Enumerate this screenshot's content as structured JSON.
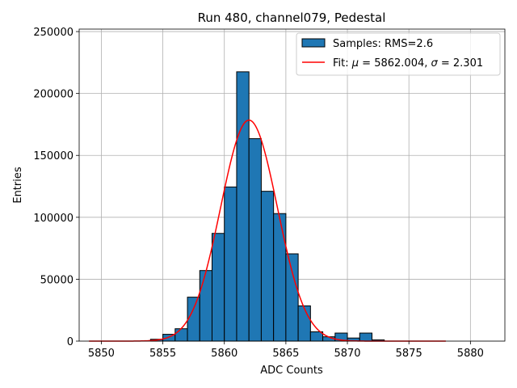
{
  "chart_data": {
    "type": "bar",
    "title": "Run 480, channel079, Pedestal",
    "xlabel": "ADC Counts",
    "ylabel": "Entries",
    "xlim": [
      5848.2,
      5882.8
    ],
    "ylim": [
      0,
      252000
    ],
    "xticks": [
      5850,
      5855,
      5860,
      5865,
      5870,
      5875,
      5880
    ],
    "yticks": [
      0,
      50000,
      100000,
      150000,
      200000,
      250000
    ],
    "grid": true,
    "legend_position": "top-right",
    "legend": {
      "samples_label": "Samples: RMS=2.6",
      "fit_label_prefix": "Fit: ",
      "fit_mu_symbol": "μ",
      "fit_mu_text": " = 5862.004, ",
      "fit_sigma_symbol": "σ",
      "fit_sigma_text": " = 2.301"
    },
    "histogram": {
      "bin_width": 1,
      "bin_left_edges": [
        5854,
        5855,
        5856,
        5857,
        5858,
        5859,
        5860,
        5861,
        5862,
        5863,
        5864,
        5865,
        5866,
        5867,
        5868,
        5869,
        5870,
        5871,
        5872
      ],
      "counts": [
        1500,
        5500,
        10000,
        35500,
        57000,
        87000,
        124500,
        217500,
        163500,
        121000,
        103000,
        70500,
        28500,
        7500,
        3500,
        6500,
        2500,
        6500,
        1000
      ]
    },
    "fit": {
      "mu": 5862.004,
      "sigma": 2.301,
      "amplitude": 178500,
      "x_range": [
        5849,
        5878
      ]
    }
  }
}
